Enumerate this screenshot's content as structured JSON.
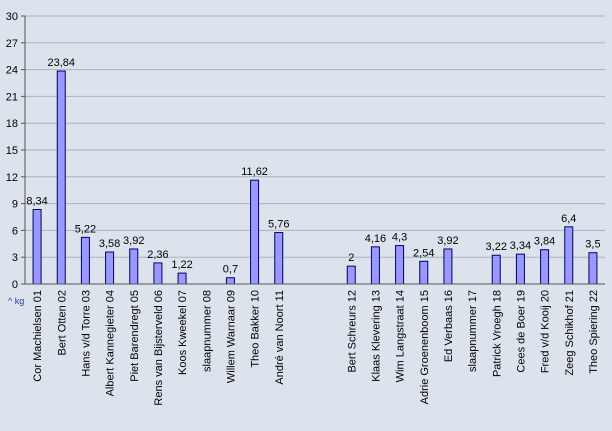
{
  "chart_data": {
    "type": "bar",
    "title": "",
    "xlabel": "",
    "ylabel": "",
    "unit_label": "^ kg",
    "ylim": [
      0,
      30
    ],
    "yticks": [
      0,
      3,
      6,
      9,
      12,
      15,
      18,
      21,
      24,
      27,
      30
    ],
    "grid": true,
    "categories": [
      "Cor Machielsen 01",
      "Bert Otten 02",
      "Hans v/d Torre 03",
      "Albert Kannegieter 04",
      "Piet Barendregt 05",
      "Rens van Bijsterveld 06",
      "Koos Kweekel 07",
      "slaapnummer 08",
      "Willem Warnaar 09",
      "Theo Bakker 10",
      "André van Noort 11",
      "",
      "",
      "Bert Schreurs 12",
      "Klaas Klevering 13",
      "Wim Langstraat 14",
      "Adrie Groenenboom 15",
      "Ed Verbaas 16",
      "slaapnummer 17",
      "Patrick Vroegh 18",
      "Cees de Boer 19",
      "Fred v/d Kooij 20",
      "Zeeg Schikhof 21",
      "Theo Spiering 22"
    ],
    "values": [
      8.34,
      23.84,
      5.22,
      3.58,
      3.92,
      2.36,
      1.22,
      null,
      0.7,
      11.62,
      5.76,
      null,
      null,
      2,
      4.16,
      4.3,
      2.54,
      3.92,
      null,
      3.22,
      3.34,
      3.84,
      6.4,
      3.5
    ],
    "data_labels": [
      "8,34",
      "23,84",
      "5,22",
      "3,58",
      "3,92",
      "2,36",
      "1,22",
      null,
      "0,7",
      "11,62",
      "5,76",
      null,
      null,
      "2",
      "4,16",
      "4,3",
      "2,54",
      "3,92",
      null,
      "3,22",
      "3,34",
      "3,84",
      "6,4",
      "3,5"
    ],
    "colors": {
      "bar_fill": "#9999ff",
      "bar_stroke": "#000066",
      "background": "#dde3ec",
      "unit_color": "#1f3fa0"
    }
  }
}
